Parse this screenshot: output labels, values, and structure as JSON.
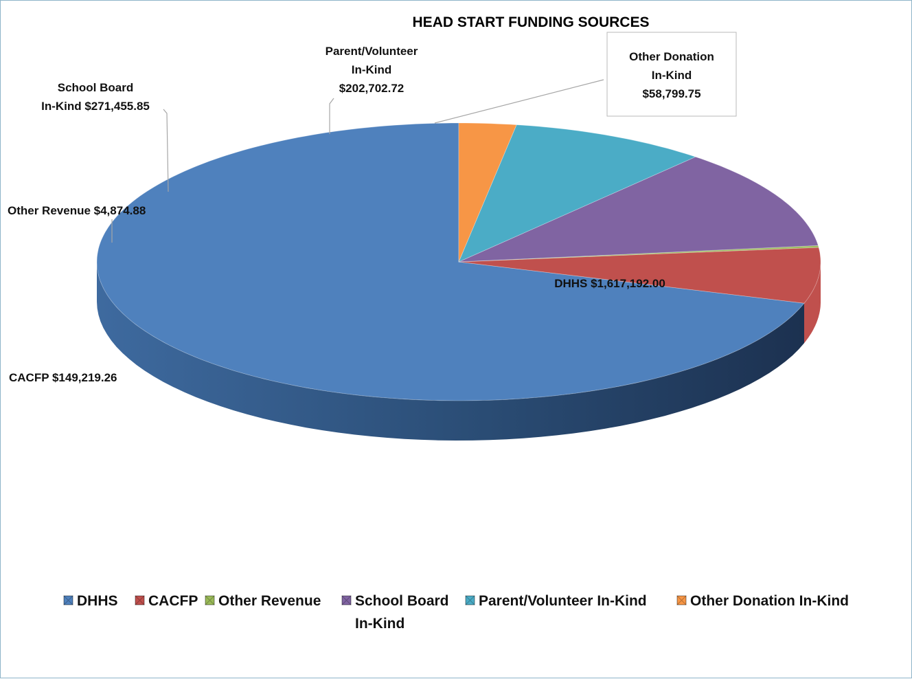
{
  "chart_data": {
    "type": "pie",
    "title": "HEAD START FUNDING SOURCES",
    "legend_position": "bottom",
    "slices": [
      {
        "name": "DHHS",
        "value": 1617192.0,
        "color": "#4f81bd",
        "label_lines": [
          "DHHS   $1,617,192.00"
        ]
      },
      {
        "name": "CACFP",
        "value": 149219.26,
        "color": "#c0504d",
        "label_lines": [
          "CACFP  $149,219.26"
        ]
      },
      {
        "name": "Other Revenue",
        "value": 4874.88,
        "color": "#9bbb59",
        "label_lines": [
          "Other Revenue  $4,874.88"
        ]
      },
      {
        "name": "School Board In-Kind",
        "value": 271455.85,
        "color": "#8064a2",
        "label_lines": [
          "School Board",
          "In-Kind  $271,455.85"
        ]
      },
      {
        "name": "Parent/Volunteer In-Kind",
        "value": 202702.72,
        "color": "#4bacc6",
        "label_lines": [
          "Parent/Volunteer",
          "In-Kind",
          "$202,702.72"
        ]
      },
      {
        "name": "Other Donation In-Kind",
        "value": 58799.75,
        "color": "#f79646",
        "label_lines": [
          "Other Donation",
          "In-Kind",
          "$58,799.75"
        ]
      }
    ],
    "legend": [
      {
        "lines": [
          "DHHS"
        ],
        "color": "#4f81bd"
      },
      {
        "lines": [
          "CACFP"
        ],
        "color": "#c0504d"
      },
      {
        "lines": [
          "Other Revenue"
        ],
        "color": "#9bbb59"
      },
      {
        "lines": [
          "School Board",
          "In-Kind"
        ],
        "color": "#8064a2"
      },
      {
        "lines": [
          "Parent/Volunteer In-Kind"
        ],
        "color": "#4bacc6"
      },
      {
        "lines": [
          "Other Donation In-Kind"
        ],
        "color": "#f79646"
      }
    ]
  }
}
